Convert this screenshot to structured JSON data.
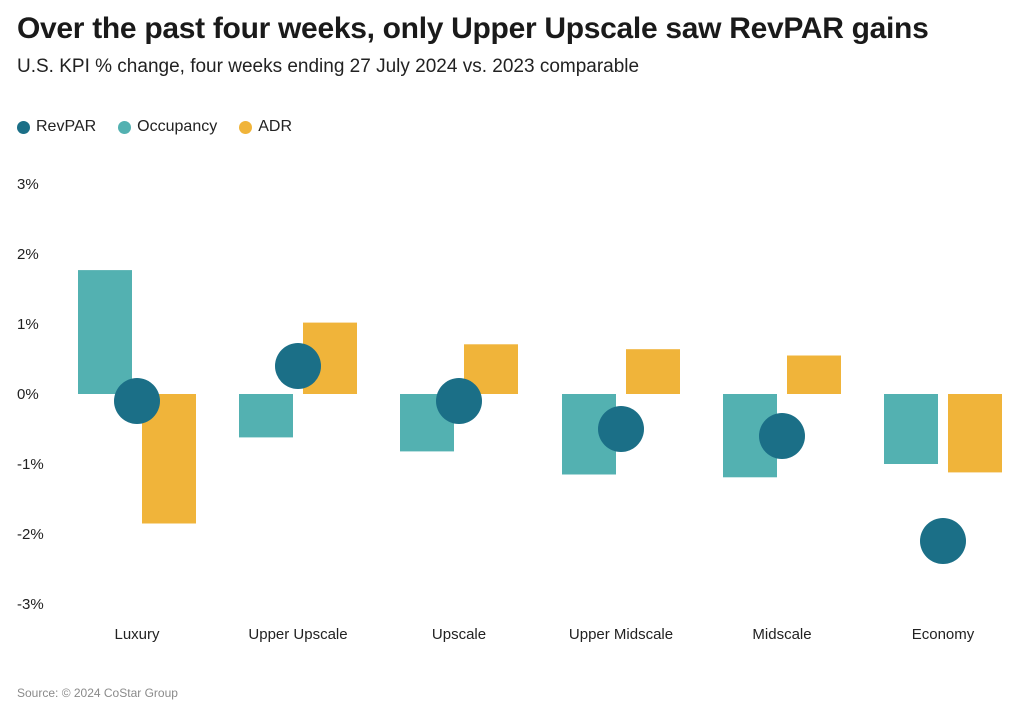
{
  "title": "Over the past four weeks, only Upper Upscale saw RevPAR gains",
  "subtitle": "U.S. KPI % change, four weeks ending 27 July 2024 vs. 2023 comparable",
  "source": "Source: © 2024 CoStar Group",
  "legend": [
    {
      "label": "RevPAR",
      "color": "#1b6f87"
    },
    {
      "label": "Occupancy",
      "color": "#53b1b1"
    },
    {
      "label": "ADR",
      "color": "#f0b43a"
    }
  ],
  "chart_data": {
    "type": "bar",
    "categories": [
      "Luxury",
      "Upper Upscale",
      "Upscale",
      "Upper Midscale",
      "Midscale",
      "Economy"
    ],
    "series": [
      {
        "name": "Occupancy",
        "mark": "bar",
        "color": "#53b1b1",
        "values": [
          1.77,
          -0.62,
          -0.82,
          -1.15,
          -1.19,
          -1.0
        ]
      },
      {
        "name": "ADR",
        "mark": "bar",
        "color": "#f0b43a",
        "values": [
          -1.85,
          1.02,
          0.71,
          0.64,
          0.55,
          -1.12
        ]
      },
      {
        "name": "RevPAR",
        "mark": "dot",
        "color": "#1b6f87",
        "values": [
          -0.1,
          0.4,
          -0.1,
          -0.5,
          -0.6,
          -2.1
        ]
      }
    ],
    "ylim": [
      -3,
      3
    ],
    "yticks": [
      3,
      2,
      1,
      0,
      -1,
      -2,
      -3
    ],
    "ytick_labels": [
      "3%",
      "2%",
      "1%",
      "0%",
      "-1%",
      "-2%",
      "-3%"
    ],
    "grid": false,
    "legend_position": "top-left"
  }
}
